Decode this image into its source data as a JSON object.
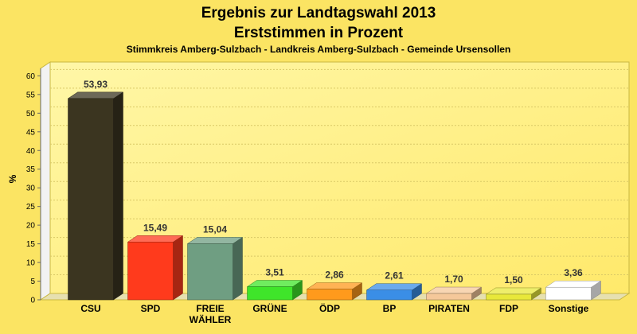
{
  "chart_data": {
    "type": "bar",
    "title": "Ergebnis zur Landtagswahl 2013",
    "title2": "Erststimmen in Prozent",
    "subtitle": "Stimmkreis Amberg-Sulzbach - Landkreis Amberg-Sulzbach - Gemeinde Ursensollen",
    "ylabel": "%",
    "xlabel": "",
    "ylim": [
      0,
      62
    ],
    "yticks": [
      0,
      5,
      10,
      15,
      20,
      25,
      30,
      35,
      40,
      45,
      50,
      55,
      60
    ],
    "grid": true,
    "legend": "none",
    "categories": [
      {
        "lines": [
          "CSU"
        ]
      },
      {
        "lines": [
          "SPD"
        ]
      },
      {
        "lines": [
          "FREIE",
          "WÄHLER"
        ]
      },
      {
        "lines": [
          "GRÜNE"
        ]
      },
      {
        "lines": [
          "ÖDP"
        ]
      },
      {
        "lines": [
          "BP"
        ]
      },
      {
        "lines": [
          "PIRATEN"
        ]
      },
      {
        "lines": [
          "FDP"
        ]
      },
      {
        "lines": [
          "Sonstige"
        ]
      }
    ],
    "values": [
      53.93,
      15.49,
      15.04,
      3.51,
      2.86,
      2.61,
      1.7,
      1.5,
      3.36
    ],
    "value_labels": [
      "53,93",
      "15,49",
      "15,04",
      "3,51",
      "2,86",
      "2,61",
      "1,70",
      "1,50",
      "3,36"
    ],
    "colors": [
      "#3b3520",
      "#ff3a1c",
      "#6f9e82",
      "#3fe52a",
      "#ff9a1c",
      "#3a8ee6",
      "#f5c89a",
      "#e8e83a",
      "#ffffff"
    ]
  }
}
